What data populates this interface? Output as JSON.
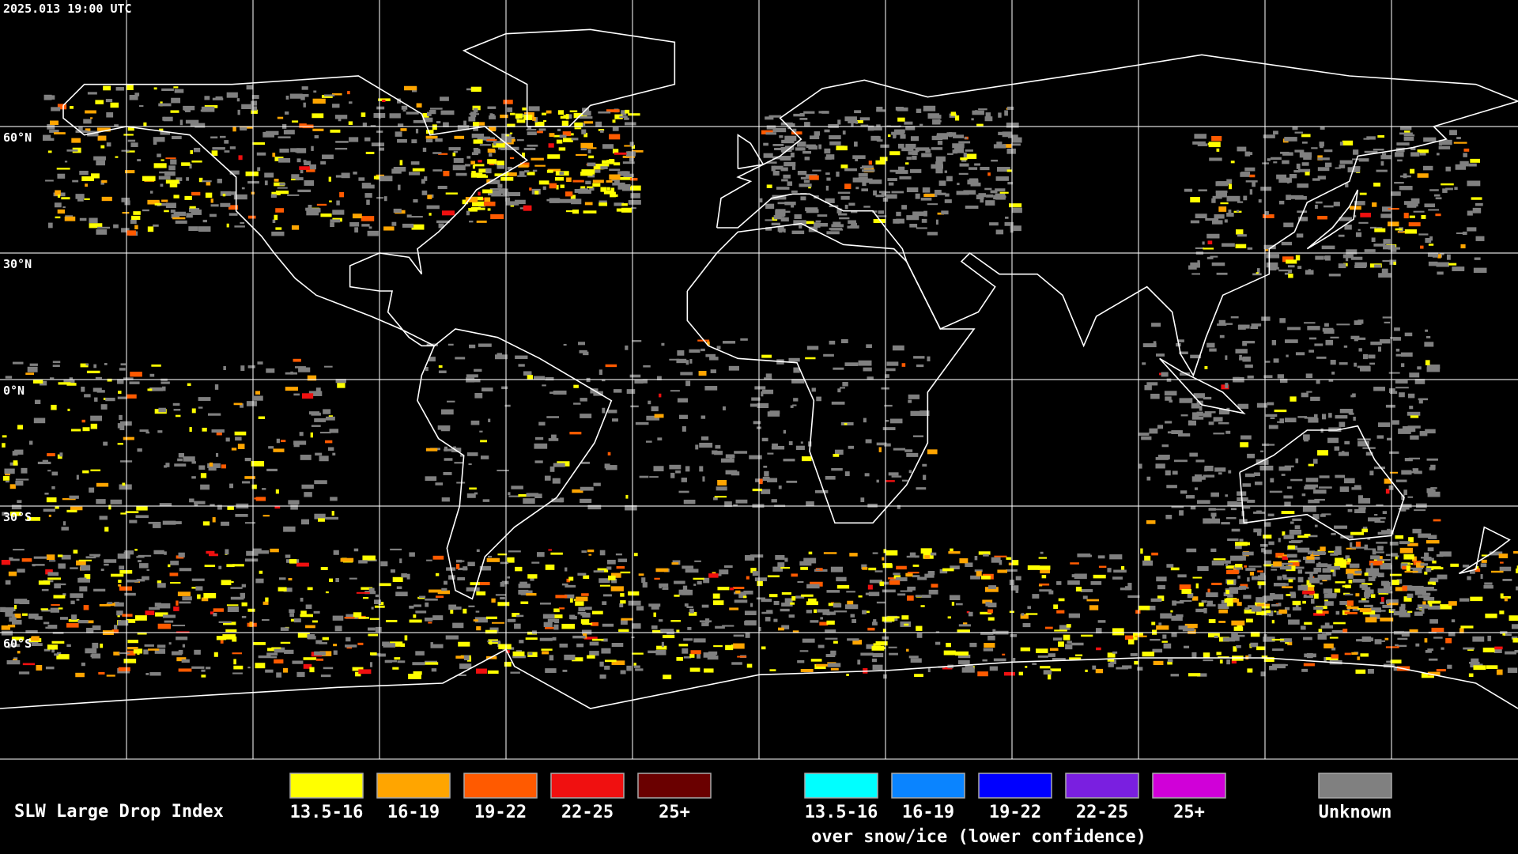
{
  "timestamp": "2025.013 19:00 UTC",
  "lat_labels": [
    "60°N",
    "30°N",
    "0°N",
    "30°S",
    "60°S"
  ],
  "legend": {
    "title": "SLW Large Drop Index",
    "items": [
      {
        "label": "13.5-16",
        "color": "#ffff00"
      },
      {
        "label": "16-19",
        "color": "#ffa500"
      },
      {
        "label": "19-22",
        "color": "#ff5a00"
      },
      {
        "label": "22-25",
        "color": "#f01010"
      },
      {
        "label": "25+",
        "color": "#6a0000"
      }
    ],
    "snow_items": [
      {
        "label": "13.5-16",
        "color": "#00ffff"
      },
      {
        "label": "16-19",
        "color": "#0a84ff"
      },
      {
        "label": "19-22",
        "color": "#0000ff"
      },
      {
        "label": "22-25",
        "color": "#7a1fe0"
      },
      {
        "label": "25+",
        "color": "#d000d8"
      }
    ],
    "snow_caption": "over snow/ice (lower confidence)",
    "unknown": {
      "label": "Unknown",
      "color": "#808080"
    }
  }
}
